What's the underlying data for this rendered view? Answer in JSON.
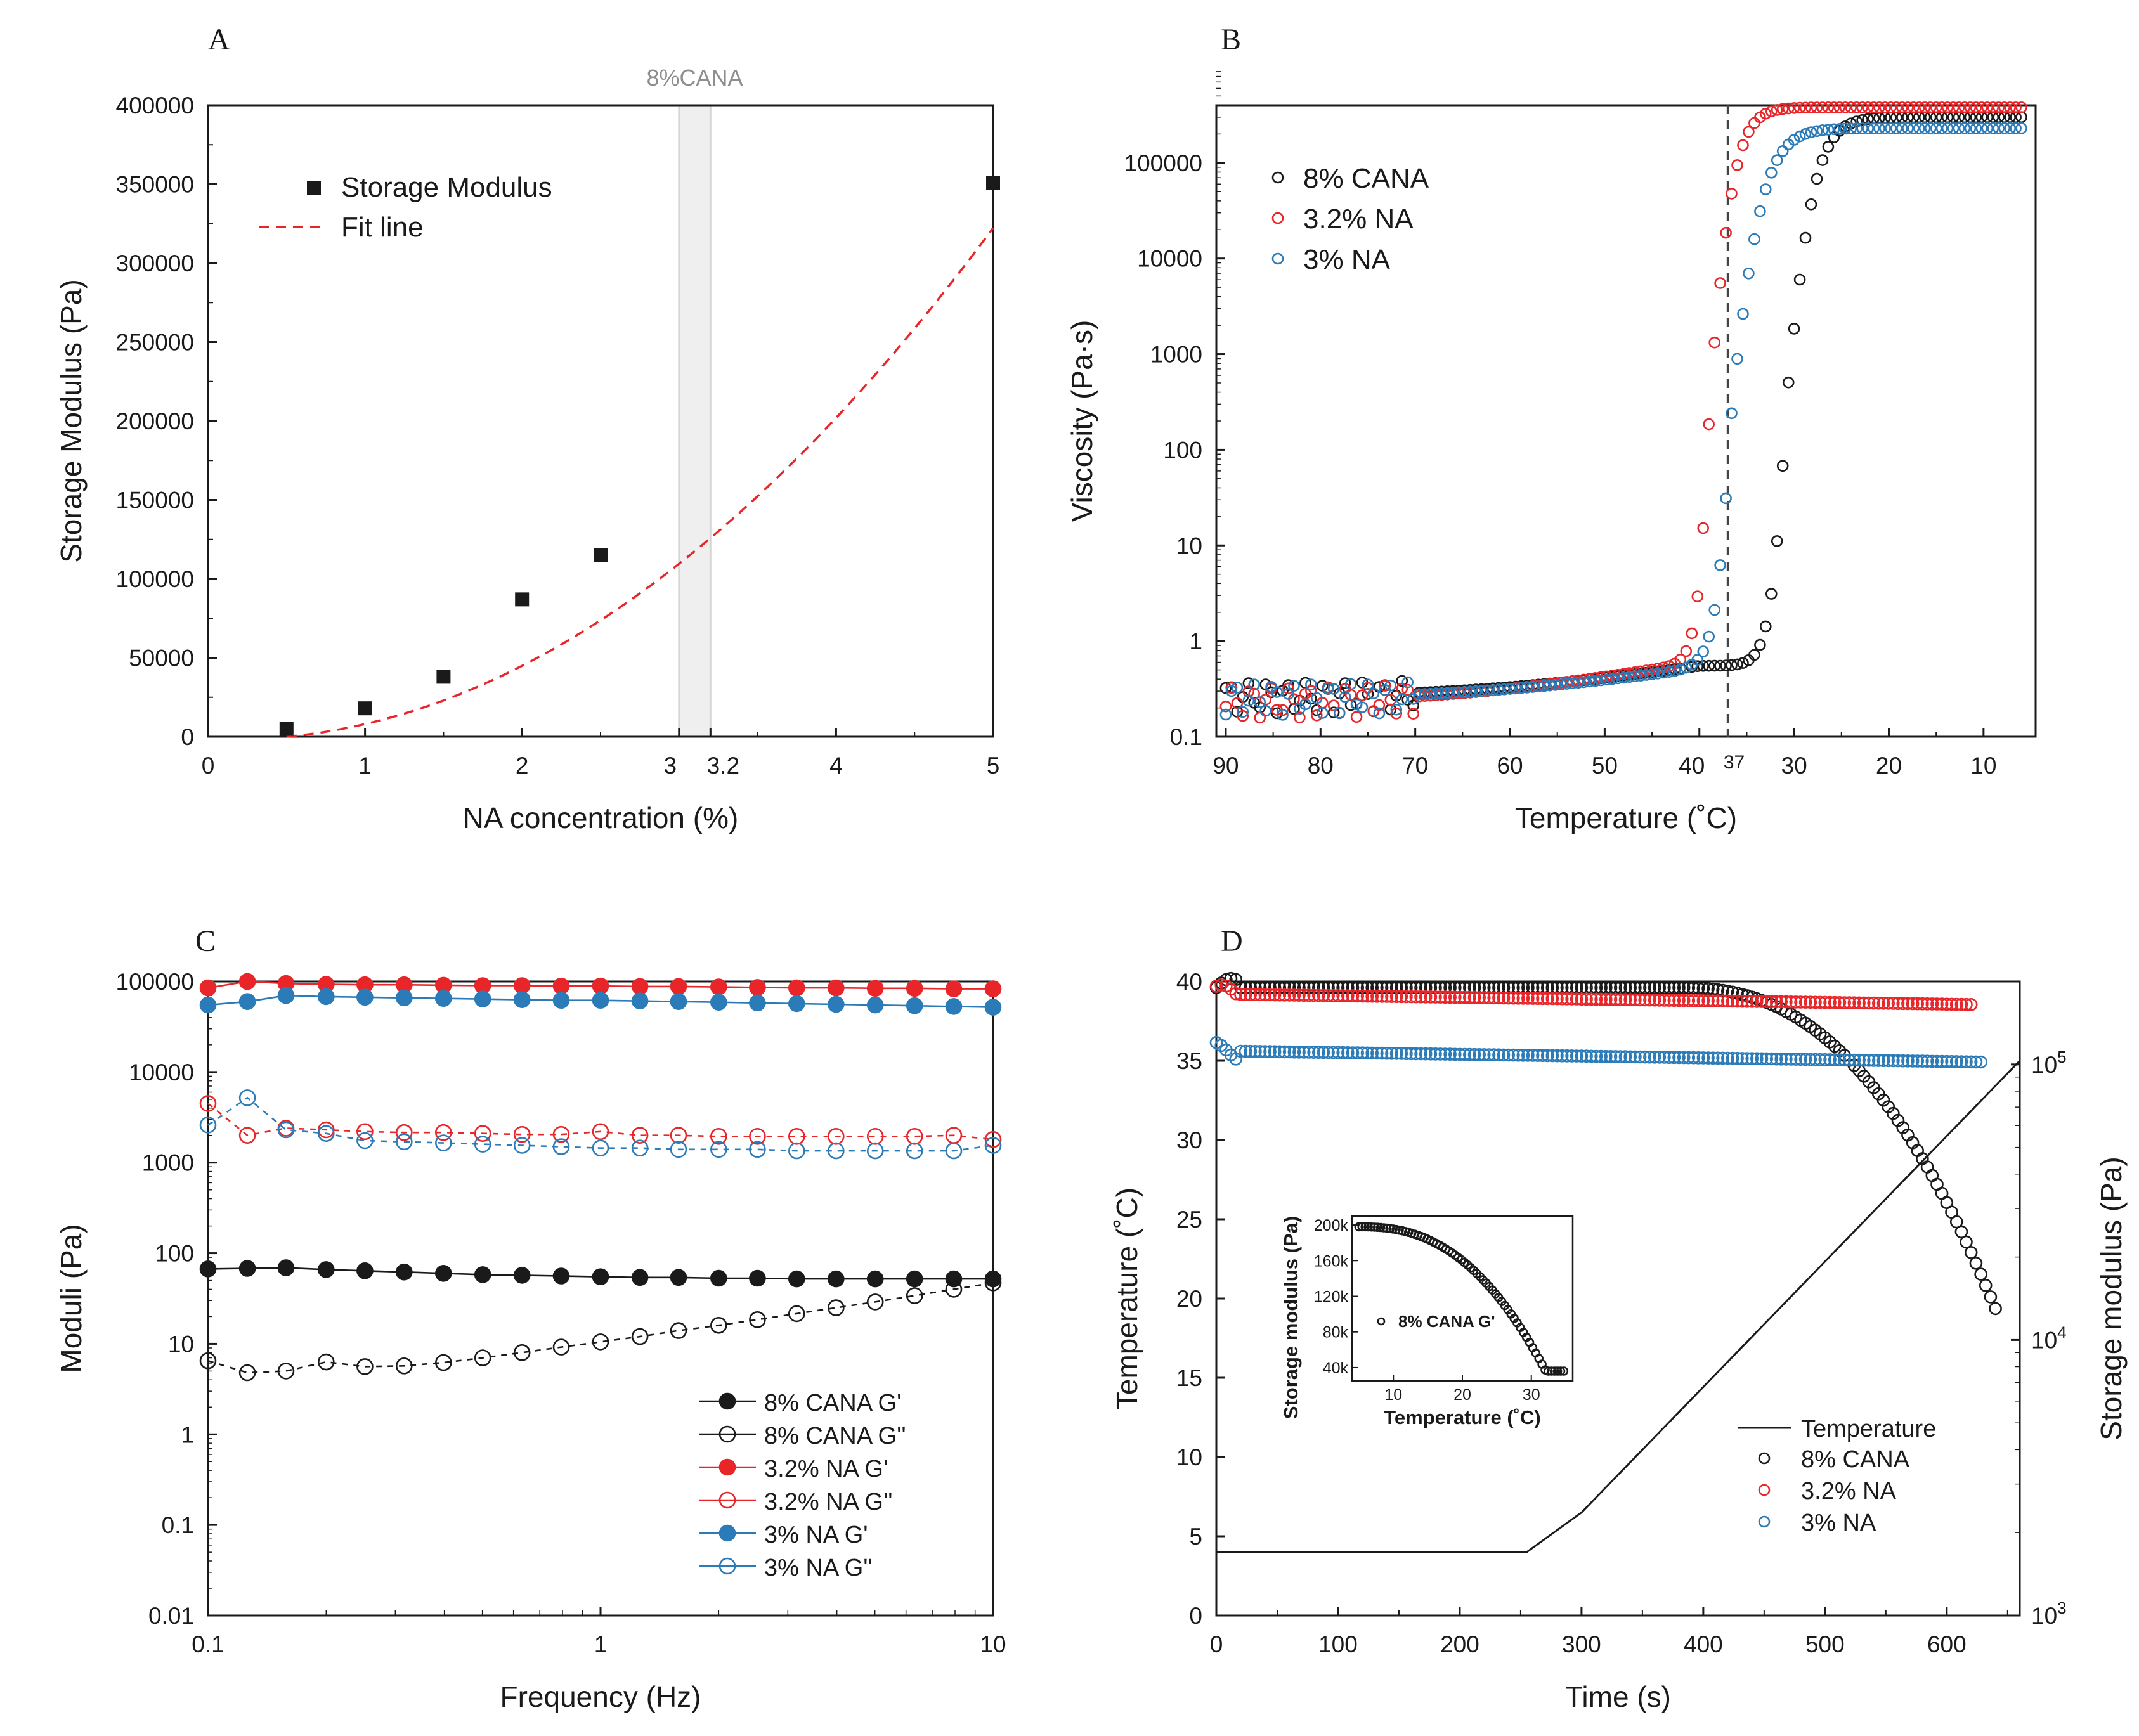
{
  "colors": {
    "black": "#1a1a1a",
    "red": "#e8262a",
    "blue": "#2b7bb8",
    "fit": "#e8262a",
    "band": "#d6d6d6"
  },
  "chart_data": [
    {
      "panel": "A",
      "type": "scatter",
      "xlabel": "NA concentration (%)",
      "ylabel": "Storage Modulus (Pa)",
      "xlim": [
        0,
        5
      ],
      "ylim": [
        0,
        400000
      ],
      "xticks": [
        "0",
        "1",
        "2",
        "3",
        "3.2",
        "4",
        "5"
      ],
      "yticks": [
        "0",
        "50000",
        "100000",
        "150000",
        "200000",
        "250000",
        "300000",
        "350000",
        "400000"
      ],
      "band_label": "8%CANA",
      "band_range": [
        3,
        3.2
      ],
      "legend": [
        "Storage Modulus",
        "Fit line"
      ],
      "points": [
        [
          0.5,
          5000
        ],
        [
          1,
          18000
        ],
        [
          1.5,
          38000
        ],
        [
          2,
          87000
        ],
        [
          2.5,
          115000
        ],
        [
          5,
          351000
        ]
      ],
      "fit": {
        "x0": 0.5,
        "x1": 5,
        "a": 13890,
        "b": 9100
      }
    },
    {
      "panel": "B",
      "type": "scatter",
      "xlabel": "Temperature (˚C)",
      "ylabel": "Viscosity (Pa·s)",
      "xlim": [
        91,
        4.5
      ],
      "ylim_log": [
        0.1,
        400000
      ],
      "xticks": [
        "90",
        "80",
        "70",
        "60",
        "50",
        "40",
        "30",
        "20",
        "10"
      ],
      "extra_tick": "37",
      "yticks": [
        "0.1",
        "1",
        "10",
        "100",
        "1000",
        "10000",
        "100000"
      ],
      "vline": 37,
      "series": [
        {
          "name": "8% CANA",
          "low": [
            0.27,
            0.55
          ],
          "trans": [
            30.7,
            0.9,
            1.5
          ],
          "plateau": 300000
        },
        {
          "name": "3.2% NA",
          "low": [
            0.24,
            0.6
          ],
          "trans": [
            38.8,
            0.7,
            1.3
          ],
          "plateau": 380000
        },
        {
          "name": "3% NA",
          "low": [
            0.26,
            0.52
          ],
          "trans": [
            36.5,
            0.9,
            1.7
          ],
          "plateau": 230000
        }
      ]
    },
    {
      "panel": "C",
      "type": "line",
      "xlabel": "Frequency (Hz)",
      "ylabel": "Moduli (Pa)",
      "xlim_log": [
        0.1,
        10
      ],
      "ylim_log": [
        0.01,
        100000
      ],
      "xticks": [
        "0.1",
        "1",
        "10"
      ],
      "yticks": [
        "0.01",
        "0.1",
        "1",
        "10",
        "100",
        "1000",
        "10000",
        "100000"
      ],
      "frequencies": [
        0.1,
        0.126,
        0.158,
        0.2,
        0.251,
        0.316,
        0.398,
        0.501,
        0.631,
        0.794,
        1,
        1.26,
        1.58,
        2,
        2.51,
        3.16,
        3.98,
        5.01,
        6.31,
        7.94,
        10
      ],
      "series": [
        {
          "name": "8% CANA G'",
          "filled": true,
          "values": [
            67,
            68,
            69,
            66,
            64,
            62,
            60,
            58,
            57,
            56,
            55,
            54,
            54,
            53,
            53,
            52,
            52,
            52,
            52,
            52,
            52
          ]
        },
        {
          "name": "8% CANA G''",
          "filled": false,
          "values": [
            6.5,
            4.8,
            5.0,
            6.3,
            5.6,
            5.7,
            6.2,
            7.0,
            8.0,
            9.2,
            10.5,
            12,
            14,
            16,
            18.5,
            21.5,
            25,
            29,
            34,
            40,
            47
          ]
        },
        {
          "name": "3.2% NA G'",
          "filled": true,
          "values": [
            85000,
            100000,
            95000,
            93000,
            92000,
            92000,
            91000,
            90000,
            90000,
            89000,
            89000,
            88000,
            88000,
            87000,
            86000,
            85000,
            85000,
            84000,
            84000,
            83000,
            83000
          ]
        },
        {
          "name": "3.2% NA G''",
          "filled": false,
          "values": [
            4500,
            2000,
            2400,
            2300,
            2200,
            2150,
            2150,
            2100,
            2050,
            2050,
            2200,
            2000,
            2000,
            1950,
            1950,
            1950,
            1950,
            1950,
            1950,
            2000,
            1800
          ]
        },
        {
          "name": "3% NA G'",
          "filled": true,
          "values": [
            55000,
            60000,
            70000,
            68000,
            67000,
            66000,
            65000,
            64000,
            63000,
            62000,
            62000,
            61000,
            60000,
            59000,
            58000,
            57000,
            56000,
            55000,
            54000,
            53000,
            52000
          ]
        },
        {
          "name": "3% NA G''",
          "filled": false,
          "values": [
            2600,
            5200,
            2300,
            2100,
            1750,
            1700,
            1650,
            1600,
            1550,
            1500,
            1450,
            1450,
            1400,
            1400,
            1400,
            1350,
            1350,
            1350,
            1350,
            1350,
            1550
          ]
        }
      ]
    },
    {
      "panel": "D",
      "type": "line",
      "xlabel": "Time (s)",
      "ylabel": "Temperature (˚C)",
      "y2label": "Storage modulus (Pa)",
      "xlim": [
        0,
        660
      ],
      "ylim": [
        0,
        40
      ],
      "y2lim_log": [
        1000,
        200000
      ],
      "xticks": [
        "0",
        "100",
        "200",
        "300",
        "400",
        "500",
        "600"
      ],
      "yticks": [
        "0",
        "5",
        "10",
        "15",
        "20",
        "25",
        "30",
        "35",
        "40"
      ],
      "y2ticks": [
        {
          "base": "10",
          "exp": "3"
        },
        {
          "base": "10",
          "exp": "4"
        },
        {
          "base": "10",
          "exp": "5"
        }
      ],
      "temperature": [
        [
          0,
          4
        ],
        [
          255,
          4
        ],
        [
          300,
          6.5
        ],
        [
          660,
          35
        ]
      ],
      "series": [
        {
          "name": "8% CANA",
          "start": 0,
          "end": 640,
          "base": 190000,
          "knee": 380,
          "final": 13000
        },
        {
          "name": "3.2% NA",
          "start": 0,
          "end": 620,
          "base": 180000,
          "knee": 10000,
          "final": 165000
        },
        {
          "name": "3% NA",
          "start": 0,
          "end": 630,
          "base": 112000,
          "knee": 10000,
          "final": 102000
        }
      ],
      "legend": [
        "Temperature",
        "8% CANA",
        "3.2% NA",
        "3% NA"
      ],
      "inset": {
        "xlabel": "Temperature (˚C)",
        "ylabel": "Storage modulus (Pa)",
        "xticks": [
          "10",
          "20",
          "30"
        ],
        "yticks": [
          "40k",
          "80k",
          "120k",
          "160k",
          "200k"
        ],
        "legend": "8% CANA G'"
      }
    }
  ]
}
